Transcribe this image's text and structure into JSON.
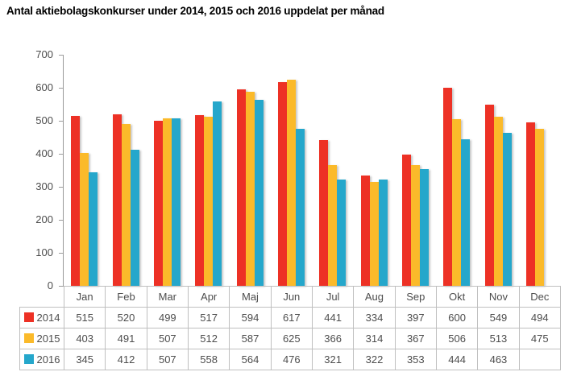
{
  "title": "Antal aktiebolagskonkurser under 2014, 2015 och 2016 uppdelat per månad",
  "chart_data": {
    "type": "bar",
    "title": "Antal aktiebolagskonkurser under 2014, 2015 och 2016 uppdelat per månad",
    "categories": [
      "Jan",
      "Feb",
      "Mar",
      "Apr",
      "Maj",
      "Jun",
      "Jul",
      "Aug",
      "Sep",
      "Okt",
      "Nov",
      "Dec"
    ],
    "series": [
      {
        "name": "2014",
        "color": "#ED3125",
        "values": [
          515,
          520,
          499,
          517,
          594,
          617,
          441,
          334,
          397,
          600,
          549,
          494
        ]
      },
      {
        "name": "2015",
        "color": "#FBBA2A",
        "values": [
          403,
          491,
          507,
          512,
          587,
          625,
          366,
          314,
          367,
          506,
          513,
          475
        ]
      },
      {
        "name": "2016",
        "color": "#25A7CB",
        "values": [
          345,
          412,
          507,
          558,
          564,
          476,
          321,
          322,
          353,
          444,
          463,
          null
        ]
      }
    ],
    "xlabel": "",
    "ylabel": "",
    "ylim": [
      0,
      700
    ],
    "yticks": [
      0,
      100,
      200,
      300,
      400,
      500,
      600,
      700
    ],
    "grid": false,
    "legend_position": "data-table-left",
    "data_table_shown": true
  }
}
